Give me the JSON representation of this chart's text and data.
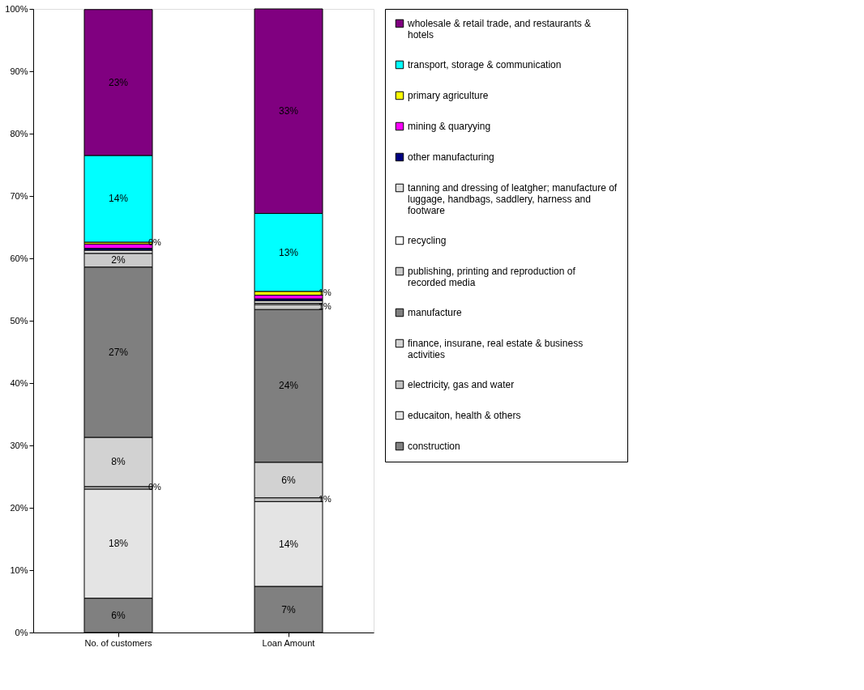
{
  "chart_data": {
    "type": "bar",
    "stacked": true,
    "categories": [
      "No. of customers",
      "Loan Amount"
    ],
    "ylim": [
      0,
      100
    ],
    "yticks": [
      {
        "value": 0,
        "label": "0%"
      },
      {
        "value": 10,
        "label": "10%"
      },
      {
        "value": 20,
        "label": "20%"
      },
      {
        "value": 30,
        "label": "30%"
      },
      {
        "value": 40,
        "label": "40%"
      },
      {
        "value": 50,
        "label": "50%"
      },
      {
        "value": 60,
        "label": "60%"
      },
      {
        "value": 70,
        "label": "70%"
      },
      {
        "value": 80,
        "label": "80%"
      },
      {
        "value": 90,
        "label": "90%"
      },
      {
        "value": 100,
        "label": "100%"
      }
    ],
    "grid": false,
    "legend": "right",
    "series": [
      {
        "name": "construction",
        "color": "#808080",
        "values": [
          5.5,
          7.4
        ],
        "value_labels": [
          "6%",
          "7%"
        ]
      },
      {
        "name": "educaiton, health & others",
        "color": "#e4e4e4",
        "values": [
          17.5,
          13.6
        ],
        "value_labels": [
          "18%",
          "14%"
        ]
      },
      {
        "name": "electricity, gas and water",
        "color": "#c0c0c0",
        "values": [
          0.4,
          0.6
        ],
        "value_labels": [
          "0%",
          "1%"
        ]
      },
      {
        "name": "finance, insurane, real estate & business activities",
        "color": "#d2d2d2",
        "values": [
          7.9,
          5.7
        ],
        "value_labels": [
          "8%",
          "6%"
        ]
      },
      {
        "name": "manufacture",
        "color": "#7f7f7f",
        "values": [
          27.3,
          24.5
        ],
        "value_labels": [
          "27%",
          "24%"
        ]
      },
      {
        "name": "publishing, printing and reproduction of recorded media",
        "color": "#cacaca",
        "values": [
          2.2,
          0.8
        ],
        "value_labels": [
          "2%",
          "1%"
        ]
      },
      {
        "name": "recycling",
        "color": "#ffffff",
        "values": [
          null,
          0.2
        ],
        "value_labels": [
          null,
          null
        ]
      },
      {
        "name": "tanning and dressing of leatgher; manufacture of luggage, handbags, saddlery, harness and footware",
        "color": "#dddddd",
        "values": [
          0.5,
          0.4
        ],
        "value_labels": [
          null,
          null
        ]
      },
      {
        "name": "other manufacturing",
        "color": "#000080",
        "values": [
          0.3,
          0.3
        ],
        "value_labels": [
          null,
          null
        ]
      },
      {
        "name": "mining & quaryying",
        "color": "#ff00ff",
        "values": [
          0.7,
          0.6
        ],
        "value_labels": [
          null,
          null
        ]
      },
      {
        "name": "primary agriculture",
        "color": "#ffff00",
        "values": [
          0.3,
          0.6
        ],
        "value_labels": [
          "0%",
          "1%"
        ]
      },
      {
        "name": "transport, storage & communication",
        "color": "#00ffff",
        "values": [
          13.9,
          12.5
        ],
        "value_labels": [
          "14%",
          "13%"
        ]
      },
      {
        "name": "wholesale & retail trade, and restaurants & hotels",
        "color": "#800080",
        "values": [
          23.4,
          32.8
        ],
        "value_labels": [
          "23%",
          "33%"
        ]
      }
    ]
  }
}
